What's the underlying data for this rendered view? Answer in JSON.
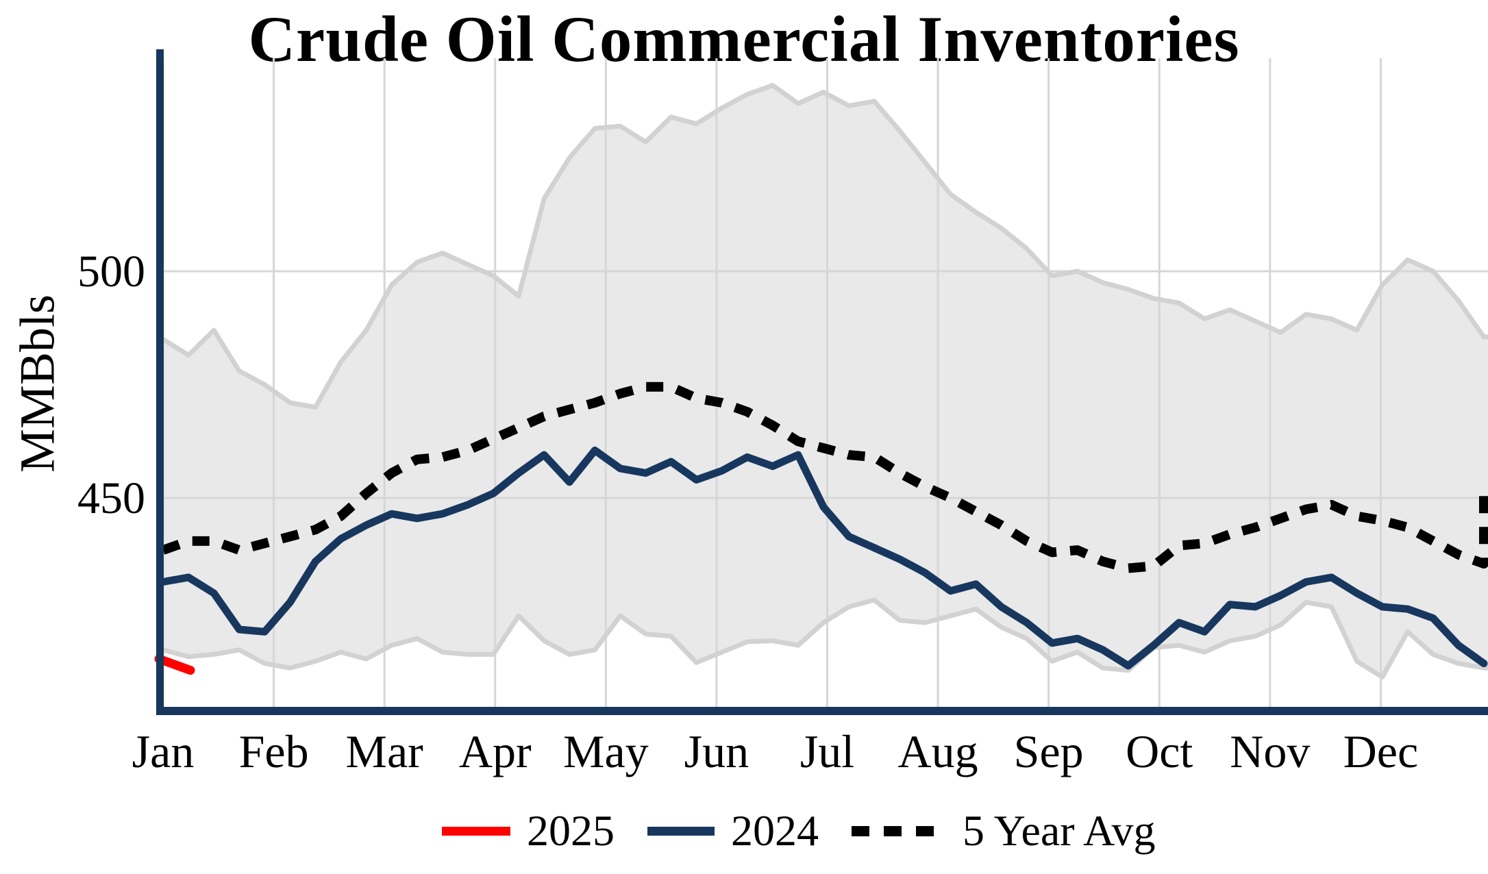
{
  "title": "Crude Oil Commercial Inventories",
  "y_axis": {
    "label": "MMBbls",
    "tick_labels": [
      "500",
      "450"
    ]
  },
  "x_axis": {
    "months": [
      "Jan",
      "Feb",
      "Mar",
      "Apr",
      "May",
      "Jun",
      "Jul",
      "Aug",
      "Sep",
      "Oct",
      "Nov",
      "Dec"
    ]
  },
  "legend": {
    "items": [
      {
        "label": "2025",
        "style": "solid-red"
      },
      {
        "label": "2024",
        "style": "solid-navy"
      },
      {
        "label": "5 Year Avg",
        "style": "dotted-black"
      }
    ]
  },
  "colors": {
    "navy": "#17375e",
    "red": "#ff0000",
    "band_fill": "#e9e9e9",
    "band_edge": "#d2d2d2",
    "gridline": "#d6d6d6",
    "dotted": "#000000"
  },
  "chart_data": {
    "type": "line",
    "title": "Crude Oil Commercial Inventories",
    "ylabel": "MMBbls",
    "x_unit": "weeks (Jan-Dec)",
    "ylim_visible": [
      403,
      547
    ],
    "yticks": [
      450,
      500
    ],
    "grid": true,
    "legend_position": "bottom",
    "series": [
      {
        "name": "5 Year Range",
        "type": "band",
        "upper": [
          485,
          481.5,
          487,
          478,
          475,
          471,
          470,
          480,
          487,
          497,
          502,
          504,
          501.5,
          499,
          494.5,
          516,
          525,
          531.5,
          532,
          528.5,
          534,
          532.5,
          536,
          539,
          541,
          537,
          539.5,
          536.5,
          537.5,
          531,
          524,
          517,
          513,
          509.5,
          505,
          499,
          500,
          497.5,
          496,
          494,
          493,
          489.5,
          491.5,
          489,
          486.5,
          490.5,
          489.5,
          487,
          497,
          502.5,
          500,
          493.5,
          485.5
        ],
        "lower": [
          416.5,
          415,
          415.5,
          416.5,
          413.5,
          412.5,
          414,
          416,
          414.5,
          417.5,
          419,
          416,
          415.5,
          415.5,
          424,
          418.5,
          415.5,
          416.5,
          424,
          420,
          419.5,
          413.7,
          416,
          418.3,
          418.5,
          417.5,
          422.5,
          426,
          427.5,
          423,
          422.5,
          424,
          425.5,
          421.5,
          419,
          414,
          416,
          412.5,
          412,
          417,
          417.5,
          416,
          418.5,
          419.5,
          422,
          427,
          426,
          414,
          410.5,
          420.5,
          415.5,
          413.5,
          412.5
        ]
      },
      {
        "name": "5 Year Avg",
        "type": "dotted-line",
        "values": [
          438.5,
          440.5,
          440.5,
          438.5,
          440,
          441.5,
          443,
          446,
          451,
          455.5,
          458.5,
          459,
          460.5,
          463,
          465.5,
          468,
          469.5,
          471,
          473,
          474.5,
          474.5,
          472,
          471,
          469,
          466,
          462.5,
          461,
          459.5,
          459,
          455.5,
          452.5,
          450,
          447,
          444,
          440.5,
          438,
          438.5,
          436,
          434.5,
          435,
          439.5,
          440,
          442,
          443.5,
          445.5,
          447.5,
          448.5,
          446,
          445,
          443.5,
          440.5,
          437.5,
          435.5
        ],
        "terminal_jump_value": 450.5
      },
      {
        "name": "2024",
        "type": "line",
        "values": [
          431.5,
          432.5,
          429,
          421,
          420.5,
          427,
          436,
          441,
          444,
          446.5,
          445.5,
          446.5,
          448.5,
          451,
          455.5,
          459.5,
          453.5,
          460.5,
          456.5,
          455.5,
          458,
          454,
          456,
          459,
          457,
          459.5,
          448,
          441.5,
          439,
          436.5,
          433.5,
          429.5,
          431,
          426,
          422.5,
          418,
          419,
          416.5,
          413,
          417.5,
          422.5,
          420.5,
          426.5,
          426,
          428.5,
          431.5,
          432.5,
          429,
          426,
          425.5,
          423.5,
          417.5,
          413.5
        ]
      },
      {
        "name": "2025",
        "type": "line",
        "values": [
          414.5,
          412
        ]
      }
    ]
  }
}
